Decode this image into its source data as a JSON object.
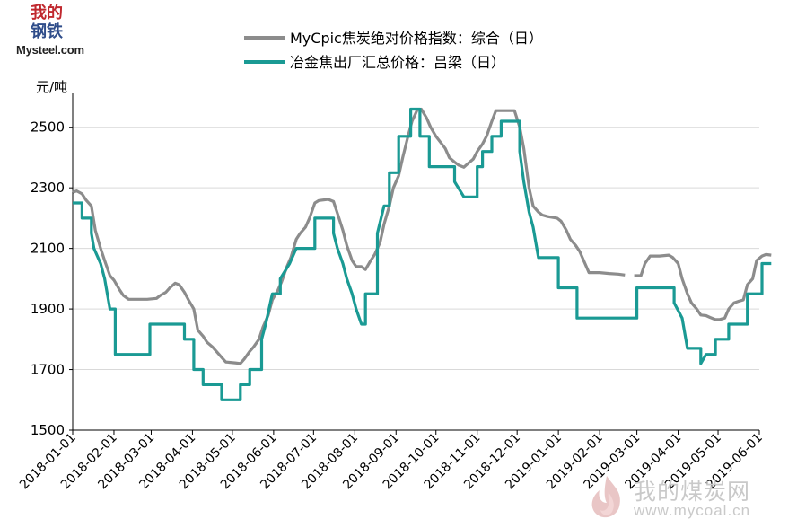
{
  "logo": {
    "cn_line1": "我的",
    "cn_line2": "钢铁",
    "en": "Mysteel.com"
  },
  "watermark": {
    "cn": "我的煤炭网",
    "en": "www.mycoal.cn"
  },
  "chart_data": {
    "type": "line",
    "ylabel": "元/吨",
    "xlabel": "",
    "ylim": [
      1500,
      2600
    ],
    "yticks": [
      1500,
      1700,
      1900,
      2100,
      2300,
      2500
    ],
    "xticks": [
      "2018-01-01",
      "2018-02-01",
      "2018-03-01",
      "2018-04-01",
      "2018-05-01",
      "2018-06-01",
      "2018-07-01",
      "2018-08-01",
      "2018-09-01",
      "2018-10-01",
      "2018-11-01",
      "2018-12-01",
      "2019-01-01",
      "2019-02-01",
      "2019-03-01",
      "2019-04-01",
      "2019-05-01",
      "2019-06-01"
    ],
    "legend_position": "top",
    "grid": "horizontal",
    "series": [
      {
        "name": "MyCpic焦炭绝对价格指数：综合（日）",
        "color": "#8c8c8c",
        "points": [
          [
            "2018-01-01",
            2285
          ],
          [
            "2018-01-04",
            2290
          ],
          [
            "2018-01-08",
            2280
          ],
          [
            "2018-01-11",
            2260
          ],
          [
            "2018-01-15",
            2240
          ],
          [
            "2018-01-18",
            2160
          ],
          [
            "2018-01-22",
            2100
          ],
          [
            "2018-01-25",
            2060
          ],
          [
            "2018-01-29",
            2010
          ],
          [
            "2018-02-01",
            1995
          ],
          [
            "2018-02-05",
            1965
          ],
          [
            "2018-02-08",
            1945
          ],
          [
            "2018-02-12",
            1932
          ],
          [
            "2018-02-26",
            1932
          ],
          [
            "2018-03-05",
            1935
          ],
          [
            "2018-03-08",
            1945
          ],
          [
            "2018-03-12",
            1955
          ],
          [
            "2018-03-15",
            1970
          ],
          [
            "2018-03-19",
            1985
          ],
          [
            "2018-03-22",
            1980
          ],
          [
            "2018-03-26",
            1955
          ],
          [
            "2018-03-29",
            1930
          ],
          [
            "2018-04-02",
            1900
          ],
          [
            "2018-04-05",
            1830
          ],
          [
            "2018-04-09",
            1810
          ],
          [
            "2018-04-12",
            1790
          ],
          [
            "2018-04-16",
            1775
          ],
          [
            "2018-04-19",
            1760
          ],
          [
            "2018-04-23",
            1740
          ],
          [
            "2018-04-26",
            1725
          ],
          [
            "2018-05-03",
            1722
          ],
          [
            "2018-05-07",
            1720
          ],
          [
            "2018-05-10",
            1735
          ],
          [
            "2018-05-14",
            1760
          ],
          [
            "2018-05-17",
            1775
          ],
          [
            "2018-05-21",
            1800
          ],
          [
            "2018-05-24",
            1840
          ],
          [
            "2018-05-28",
            1880
          ],
          [
            "2018-05-31",
            1930
          ],
          [
            "2018-06-04",
            1960
          ],
          [
            "2018-06-07",
            1990
          ],
          [
            "2018-06-11",
            2040
          ],
          [
            "2018-06-14",
            2070
          ],
          [
            "2018-06-18",
            2130
          ],
          [
            "2018-06-21",
            2150
          ],
          [
            "2018-06-25",
            2170
          ],
          [
            "2018-06-28",
            2200
          ],
          [
            "2018-07-02",
            2250
          ],
          [
            "2018-07-05",
            2258
          ],
          [
            "2018-07-12",
            2262
          ],
          [
            "2018-07-16",
            2255
          ],
          [
            "2018-07-19",
            2215
          ],
          [
            "2018-07-23",
            2160
          ],
          [
            "2018-07-26",
            2110
          ],
          [
            "2018-07-30",
            2060
          ],
          [
            "2018-08-02",
            2040
          ],
          [
            "2018-08-06",
            2040
          ],
          [
            "2018-08-09",
            2030
          ],
          [
            "2018-08-13",
            2060
          ],
          [
            "2018-08-16",
            2080
          ],
          [
            "2018-08-20",
            2120
          ],
          [
            "2018-08-23",
            2180
          ],
          [
            "2018-08-27",
            2240
          ],
          [
            "2018-08-30",
            2300
          ],
          [
            "2018-09-03",
            2340
          ],
          [
            "2018-09-06",
            2400
          ],
          [
            "2018-09-10",
            2470
          ],
          [
            "2018-09-13",
            2520
          ],
          [
            "2018-09-17",
            2558
          ],
          [
            "2018-09-20",
            2560
          ],
          [
            "2018-09-24",
            2530
          ],
          [
            "2018-09-27",
            2500
          ],
          [
            "2018-10-01",
            2470
          ],
          [
            "2018-10-08",
            2430
          ],
          [
            "2018-10-11",
            2400
          ],
          [
            "2018-10-15",
            2385
          ],
          [
            "2018-10-18",
            2375
          ],
          [
            "2018-10-22",
            2368
          ],
          [
            "2018-10-25",
            2380
          ],
          [
            "2018-10-29",
            2395
          ],
          [
            "2018-11-01",
            2420
          ],
          [
            "2018-11-05",
            2445
          ],
          [
            "2018-11-08",
            2470
          ],
          [
            "2018-11-12",
            2520
          ],
          [
            "2018-11-15",
            2555
          ],
          [
            "2018-11-29",
            2555
          ],
          [
            "2018-12-03",
            2500
          ],
          [
            "2018-12-06",
            2430
          ],
          [
            "2018-12-10",
            2300
          ],
          [
            "2018-12-13",
            2240
          ],
          [
            "2018-12-17",
            2220
          ],
          [
            "2018-12-20",
            2210
          ],
          [
            "2018-12-24",
            2205
          ],
          [
            "2018-12-31",
            2200
          ],
          [
            "2019-01-03",
            2190
          ],
          [
            "2019-01-07",
            2160
          ],
          [
            "2019-01-10",
            2130
          ],
          [
            "2019-01-14",
            2110
          ],
          [
            "2019-01-17",
            2090
          ],
          [
            "2019-01-21",
            2050
          ],
          [
            "2019-01-24",
            2020
          ],
          [
            "2019-02-01",
            2020
          ],
          [
            "2019-02-08",
            2017
          ],
          [
            "2019-02-15",
            2015
          ],
          [
            "2019-02-20",
            2012
          ],
          null,
          [
            "2019-02-27",
            2010
          ],
          [
            "2019-03-04",
            2010
          ],
          [
            "2019-03-07",
            2050
          ],
          [
            "2019-03-11",
            2075
          ],
          [
            "2019-03-18",
            2075
          ],
          [
            "2019-03-25",
            2078
          ],
          [
            "2019-03-28",
            2070
          ],
          [
            "2019-04-01",
            2050
          ],
          [
            "2019-04-04",
            2000
          ],
          [
            "2019-04-08",
            1950
          ],
          [
            "2019-04-11",
            1920
          ],
          [
            "2019-04-15",
            1900
          ],
          [
            "2019-04-18",
            1880
          ],
          [
            "2019-04-22",
            1878
          ],
          [
            "2019-04-25",
            1872
          ],
          [
            "2019-04-29",
            1865
          ],
          [
            "2019-05-02",
            1865
          ],
          [
            "2019-05-06",
            1870
          ],
          [
            "2019-05-09",
            1900
          ],
          [
            "2019-05-13",
            1920
          ],
          [
            "2019-05-16",
            1925
          ],
          [
            "2019-05-20",
            1930
          ],
          [
            "2019-05-23",
            1980
          ],
          [
            "2019-05-27",
            2000
          ],
          [
            "2019-05-30",
            2060
          ],
          [
            "2019-06-03",
            2075
          ],
          [
            "2019-06-06",
            2080
          ],
          [
            "2019-06-10",
            2078
          ]
        ]
      },
      {
        "name": "冶金焦出厂汇总价格：吕梁（日）",
        "color": "#1a9a94",
        "points": [
          [
            "2018-01-01",
            2250
          ],
          [
            "2018-01-08",
            2250
          ],
          [
            "2018-01-08",
            2200
          ],
          [
            "2018-01-15",
            2200
          ],
          [
            "2018-01-15",
            2150
          ],
          [
            "2018-01-17",
            2100
          ],
          [
            "2018-01-22",
            2050
          ],
          [
            "2018-01-25",
            2000
          ],
          [
            "2018-01-29",
            1900
          ],
          [
            "2018-02-02",
            1900
          ],
          [
            "2018-02-02",
            1750
          ],
          [
            "2018-02-28",
            1750
          ],
          [
            "2018-02-28",
            1850
          ],
          [
            "2018-03-26",
            1850
          ],
          [
            "2018-03-26",
            1800
          ],
          [
            "2018-04-02",
            1800
          ],
          [
            "2018-04-02",
            1700
          ],
          [
            "2018-04-09",
            1700
          ],
          [
            "2018-04-09",
            1650
          ],
          [
            "2018-04-23",
            1650
          ],
          [
            "2018-04-23",
            1600
          ],
          [
            "2018-05-07",
            1600
          ],
          [
            "2018-05-07",
            1650
          ],
          [
            "2018-05-14",
            1650
          ],
          [
            "2018-05-14",
            1700
          ],
          [
            "2018-05-23",
            1700
          ],
          [
            "2018-05-23",
            1800
          ],
          [
            "2018-05-26",
            1850
          ],
          [
            "2018-05-31",
            1950
          ],
          [
            "2018-06-06",
            1950
          ],
          [
            "2018-06-06",
            2000
          ],
          [
            "2018-06-13",
            2050
          ],
          [
            "2018-06-18",
            2100
          ],
          [
            "2018-07-02",
            2100
          ],
          [
            "2018-07-02",
            2200
          ],
          [
            "2018-07-16",
            2200
          ],
          [
            "2018-07-16",
            2150
          ],
          [
            "2018-07-19",
            2100
          ],
          [
            "2018-07-23",
            2050
          ],
          [
            "2018-07-26",
            2000
          ],
          [
            "2018-07-30",
            1950
          ],
          [
            "2018-08-02",
            1900
          ],
          [
            "2018-08-06",
            1850
          ],
          [
            "2018-08-09",
            1850
          ],
          [
            "2018-08-09",
            1950
          ],
          [
            "2018-08-18",
            1950
          ],
          [
            "2018-08-18",
            2150
          ],
          [
            "2018-08-23",
            2240
          ],
          [
            "2018-08-27",
            2240
          ],
          [
            "2018-08-27",
            2350
          ],
          [
            "2018-09-03",
            2350
          ],
          [
            "2018-09-03",
            2470
          ],
          [
            "2018-09-12",
            2470
          ],
          [
            "2018-09-12",
            2560
          ],
          [
            "2018-09-19",
            2560
          ],
          [
            "2018-09-19",
            2470
          ],
          [
            "2018-09-26",
            2470
          ],
          [
            "2018-09-26",
            2370
          ],
          [
            "2018-10-15",
            2370
          ],
          [
            "2018-10-15",
            2320
          ],
          [
            "2018-10-22",
            2270
          ],
          [
            "2018-11-01",
            2270
          ],
          [
            "2018-11-01",
            2370
          ],
          [
            "2018-11-05",
            2370
          ],
          [
            "2018-11-05",
            2420
          ],
          [
            "2018-11-12",
            2420
          ],
          [
            "2018-11-12",
            2470
          ],
          [
            "2018-11-19",
            2470
          ],
          [
            "2018-11-19",
            2520
          ],
          [
            "2018-12-03",
            2520
          ],
          [
            "2018-12-03",
            2420
          ],
          [
            "2018-12-06",
            2320
          ],
          [
            "2018-12-10",
            2220
          ],
          [
            "2018-12-13",
            2170
          ],
          [
            "2018-12-17",
            2070
          ],
          [
            "2019-01-01",
            2070
          ],
          [
            "2019-01-01",
            1970
          ],
          [
            "2019-01-15",
            1970
          ],
          [
            "2019-01-15",
            1870
          ],
          [
            "2019-03-01",
            1870
          ],
          [
            "2019-03-01",
            1970
          ],
          [
            "2019-03-29",
            1970
          ],
          [
            "2019-03-29",
            1920
          ],
          [
            "2019-04-04",
            1870
          ],
          [
            "2019-04-08",
            1770
          ],
          [
            "2019-04-18",
            1770
          ],
          [
            "2019-04-18",
            1720
          ],
          [
            "2019-04-22",
            1750
          ],
          [
            "2019-04-29",
            1750
          ],
          [
            "2019-04-29",
            1800
          ],
          [
            "2019-05-09",
            1800
          ],
          [
            "2019-05-09",
            1850
          ],
          [
            "2019-05-23",
            1850
          ],
          [
            "2019-05-23",
            1950
          ],
          [
            "2019-06-03",
            1950
          ],
          [
            "2019-06-03",
            2050
          ],
          [
            "2019-06-10",
            2050
          ]
        ]
      }
    ]
  }
}
